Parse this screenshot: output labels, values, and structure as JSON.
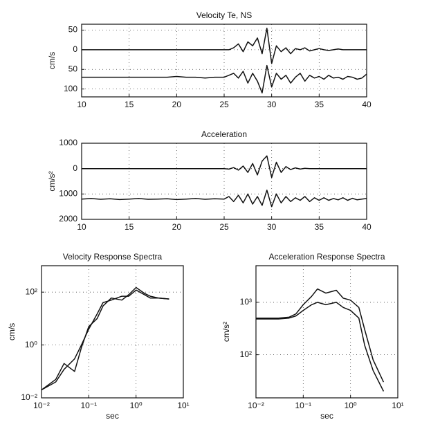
{
  "chart_data": [
    {
      "type": "line",
      "title": "Velocity Te, NS",
      "y_label": "cm/s",
      "grid": true,
      "y_reversed": true,
      "xlim": [
        10,
        40
      ],
      "xticks": [
        10,
        15,
        20,
        25,
        30,
        35,
        40
      ],
      "ylim": [
        -65,
        120
      ],
      "yticks": [
        {
          "value": -50,
          "label": "50"
        },
        0,
        50,
        100
      ],
      "x": [
        10,
        11,
        12,
        13,
        14,
        15,
        16,
        17,
        18,
        19,
        20,
        21,
        22,
        23,
        24,
        25,
        25.5,
        26,
        26.5,
        27,
        27.5,
        28,
        28.5,
        29,
        29.5,
        30,
        30.5,
        31,
        31.5,
        32,
        32.5,
        33,
        33.5,
        34,
        34.5,
        35,
        35.5,
        36,
        36.5,
        37,
        37.5,
        38,
        38.5,
        39,
        39.5,
        40
      ],
      "series": [
        {
          "color": "#111111",
          "values": [
            0,
            0,
            0,
            0,
            0,
            0,
            0,
            0,
            0,
            0,
            0,
            0,
            0,
            0,
            0,
            0,
            0,
            -5,
            -15,
            5,
            -20,
            -10,
            -30,
            10,
            -55,
            35,
            -10,
            5,
            -5,
            10,
            -3,
            0,
            -5,
            3,
            0,
            -3,
            0,
            2,
            0,
            -2,
            0,
            0,
            0,
            0,
            0,
            0
          ]
        },
        {
          "color": "#111111",
          "values": [
            70,
            70,
            70,
            70,
            70,
            70,
            70,
            70,
            70,
            70,
            68,
            70,
            70,
            72,
            70,
            70,
            65,
            60,
            72,
            55,
            85,
            60,
            80,
            110,
            40,
            95,
            60,
            75,
            65,
            85,
            70,
            60,
            80,
            65,
            72,
            68,
            75,
            65,
            72,
            70,
            75,
            68,
            70,
            75,
            72,
            62
          ]
        }
      ]
    },
    {
      "type": "line",
      "title": "Acceleration",
      "y_label": "cm/s²",
      "grid": true,
      "y_reversed": true,
      "xlim": [
        10,
        40
      ],
      "xticks": [
        10,
        15,
        20,
        25,
        30,
        35,
        40
      ],
      "ylim": [
        -1000,
        2000
      ],
      "yticks": [
        {
          "value": -1000,
          "label": "1000"
        },
        0,
        1000,
        2000
      ],
      "x": [
        10,
        11,
        12,
        13,
        14,
        15,
        16,
        17,
        18,
        19,
        20,
        21,
        22,
        23,
        24,
        25,
        25.5,
        26,
        26.5,
        27,
        27.5,
        28,
        28.5,
        29,
        29.5,
        30,
        30.5,
        31,
        31.5,
        32,
        32.5,
        33,
        33.5,
        34,
        34.5,
        35,
        35.5,
        36,
        36.5,
        37,
        37.5,
        38,
        38.5,
        39,
        39.5,
        40
      ],
      "series": [
        {
          "color": "#111111",
          "values": [
            0,
            0,
            0,
            0,
            0,
            0,
            0,
            0,
            0,
            0,
            0,
            0,
            0,
            0,
            0,
            0,
            20,
            -40,
            60,
            -100,
            150,
            -200,
            250,
            -300,
            -500,
            350,
            -250,
            150,
            -80,
            40,
            -30,
            20,
            -10,
            0,
            0,
            0,
            0,
            0,
            0,
            0,
            0,
            0,
            0,
            0,
            0,
            0
          ]
        },
        {
          "color": "#111111",
          "values": [
            1200,
            1180,
            1210,
            1190,
            1220,
            1200,
            1180,
            1210,
            1200,
            1190,
            1220,
            1200,
            1180,
            1210,
            1190,
            1200,
            1100,
            1300,
            1050,
            1350,
            1000,
            1400,
            1100,
            1450,
            850,
            1500,
            1000,
            1350,
            1100,
            1300,
            1150,
            1250,
            1100,
            1300,
            1150,
            1250,
            1150,
            1250,
            1180,
            1230,
            1150,
            1250,
            1170,
            1230,
            1200,
            1180
          ]
        }
      ]
    },
    {
      "type": "line",
      "title": "Velocity Response Spectra",
      "x_label": "sec",
      "y_label": "cm/s",
      "grid": true,
      "x_log": true,
      "y_log": true,
      "xlim": [
        0.01,
        10
      ],
      "xticks": [
        {
          "value": 0.01,
          "label": "10⁻²"
        },
        {
          "value": 0.1,
          "label": "10⁻¹"
        },
        {
          "value": 1,
          "label": "10⁰"
        },
        {
          "value": 10,
          "label": "10¹"
        }
      ],
      "ylim": [
        0.01,
        1000
      ],
      "yticks": [
        {
          "value": 0.01,
          "label": "10⁻²"
        },
        {
          "value": 1,
          "label": "10⁰"
        },
        {
          "value": 100,
          "label": "10²"
        }
      ],
      "x": [
        0.01,
        0.02,
        0.03,
        0.05,
        0.07,
        0.1,
        0.15,
        0.2,
        0.3,
        0.5,
        0.7,
        1,
        1.5,
        2,
        3,
        5
      ],
      "series": [
        {
          "color": "#111111",
          "values": [
            0.02,
            0.05,
            0.2,
            0.1,
            0.8,
            5,
            10,
            30,
            60,
            50,
            80,
            150,
            90,
            70,
            60,
            55
          ]
        },
        {
          "color": "#111111",
          "values": [
            0.02,
            0.04,
            0.12,
            0.3,
            1,
            4,
            15,
            40,
            50,
            70,
            70,
            120,
            80,
            60,
            60,
            55
          ]
        }
      ]
    },
    {
      "type": "line",
      "title": "Acceleration Response Spectra",
      "x_label": "sec",
      "y_label": "cm/s²",
      "grid": true,
      "x_log": true,
      "y_log": true,
      "xlim": [
        0.01,
        10
      ],
      "xticks": [
        {
          "value": 0.01,
          "label": "10⁻²"
        },
        {
          "value": 0.1,
          "label": "10⁻¹"
        },
        {
          "value": 1,
          "label": "10⁰"
        },
        {
          "value": 10,
          "label": "10¹"
        }
      ],
      "ylim": [
        15,
        5000
      ],
      "yticks": [
        {
          "value": 100,
          "label": "10²"
        },
        {
          "value": 1000,
          "label": "10³"
        }
      ],
      "x": [
        0.01,
        0.02,
        0.03,
        0.05,
        0.07,
        0.1,
        0.15,
        0.2,
        0.3,
        0.5,
        0.7,
        1,
        1.5,
        2,
        3,
        5
      ],
      "series": [
        {
          "color": "#111111",
          "values": [
            500,
            500,
            500,
            520,
            600,
            900,
            1300,
            1800,
            1500,
            1700,
            1200,
            1100,
            800,
            300,
            80,
            30
          ]
        },
        {
          "color": "#111111",
          "values": [
            480,
            480,
            480,
            500,
            550,
            700,
            900,
            1000,
            900,
            1000,
            800,
            700,
            500,
            150,
            50,
            20
          ]
        }
      ]
    }
  ]
}
